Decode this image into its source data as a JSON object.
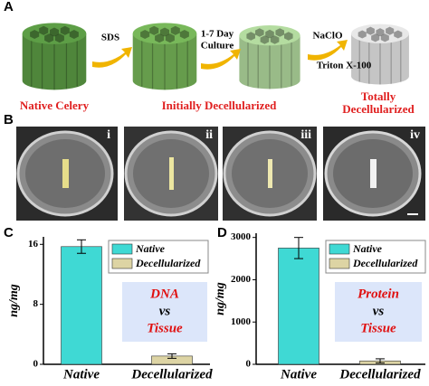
{
  "panel_labels": [
    "A",
    "B",
    "C",
    "D"
  ],
  "schematic": {
    "step1": "SDS",
    "step2": [
      "1-7 Day",
      "Culture"
    ],
    "step3": [
      "NaClO",
      "Triton X-100"
    ],
    "stage1": "Native Celery",
    "stage2": "Initially Decellularized",
    "stage3": [
      "Totally",
      "Decellularized"
    ]
  },
  "photos": {
    "labels": [
      "i",
      "ii",
      "iii",
      "iv"
    ]
  },
  "chart_data": [
    {
      "type": "bar",
      "categories": [
        "Native",
        "Decellularized"
      ],
      "values": [
        15.7,
        1.1
      ],
      "errors": [
        0.9,
        0.3
      ],
      "colors": [
        "#3fd9d4",
        "#ddd4a4"
      ],
      "ylabel": "ng/mg",
      "ylim": [
        0,
        17
      ],
      "yticks": [
        0,
        8,
        16
      ],
      "annotation": [
        "DNA",
        "vs",
        "Tissue"
      ],
      "legend": true
    },
    {
      "type": "bar",
      "categories": [
        "Native",
        "Decellularized"
      ],
      "values": [
        2750,
        80
      ],
      "errors": [
        250,
        50
      ],
      "colors": [
        "#3fd9d4",
        "#ddd4a4"
      ],
      "ylabel": "ng/mg",
      "ylim": [
        0,
        3100
      ],
      "yticks": [
        0,
        1000,
        2000,
        3000
      ],
      "annotation": [
        "Protein",
        "vs",
        "Tissue"
      ],
      "legend": true
    }
  ]
}
